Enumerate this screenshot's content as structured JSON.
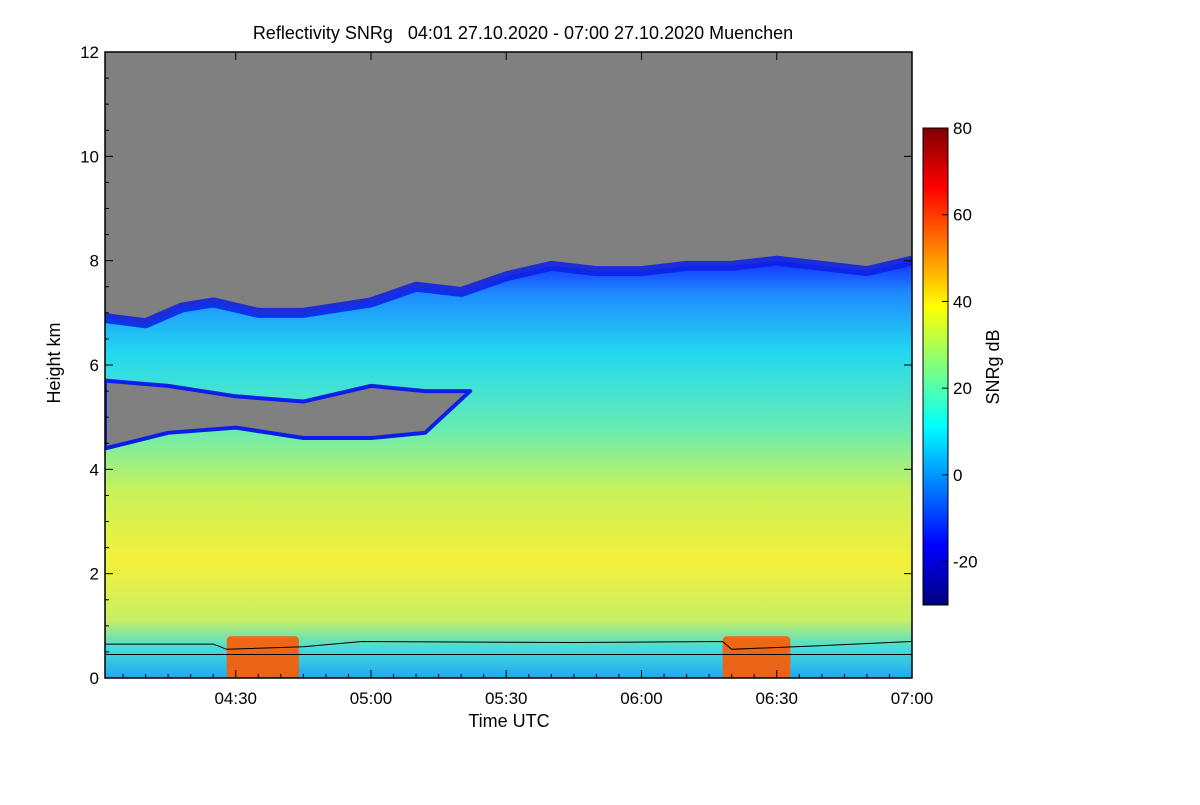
{
  "chart_data": {
    "type": "heatmap",
    "title": "Reflectivity SNRg   04:01 27.10.2020 - 07:00 27.10.2020 Muenchen",
    "xlabel": "Time UTC",
    "ylabel": "Height km",
    "colorbar_label": "SNRg dB",
    "xlim": [
      "04:01",
      "07:00"
    ],
    "ylim": [
      0,
      12
    ],
    "x_ticks": [
      {
        "t": "04:30",
        "minutes": 270
      },
      {
        "t": "05:00",
        "minutes": 300
      },
      {
        "t": "05:30",
        "minutes": 330
      },
      {
        "t": "06:00",
        "minutes": 360
      },
      {
        "t": "06:30",
        "minutes": 390
      },
      {
        "t": "07:00",
        "minutes": 420
      }
    ],
    "y_ticks": [
      0,
      2,
      4,
      6,
      8,
      10,
      12
    ],
    "colorbar_range": [
      -30,
      80
    ],
    "colorbar_ticks": [
      -20,
      0,
      20,
      40,
      60,
      80
    ],
    "colors": {
      "no_data": "#808080",
      "colormap": [
        "#00007f",
        "#0000ff",
        "#007fff",
        "#00ffff",
        "#7fff7f",
        "#ffff00",
        "#ff7f00",
        "#ff0000",
        "#7f0000"
      ]
    },
    "echo_top_km": [
      {
        "t": 241,
        "h": 6.9
      },
      {
        "t": 250,
        "h": 6.8
      },
      {
        "t": 258,
        "h": 7.1
      },
      {
        "t": 265,
        "h": 7.2
      },
      {
        "t": 275,
        "h": 7.0
      },
      {
        "t": 285,
        "h": 7.0
      },
      {
        "t": 300,
        "h": 7.2
      },
      {
        "t": 310,
        "h": 7.5
      },
      {
        "t": 320,
        "h": 7.4
      },
      {
        "t": 330,
        "h": 7.7
      },
      {
        "t": 340,
        "h": 7.9
      },
      {
        "t": 350,
        "h": 7.8
      },
      {
        "t": 360,
        "h": 7.8
      },
      {
        "t": 370,
        "h": 7.9
      },
      {
        "t": 380,
        "h": 7.9
      },
      {
        "t": 390,
        "h": 8.0
      },
      {
        "t": 400,
        "h": 7.9
      },
      {
        "t": 410,
        "h": 7.8
      },
      {
        "t": 420,
        "h": 8.0
      }
    ],
    "cloud_base_km": [
      {
        "t": 241,
        "h": 4.4
      },
      {
        "t": 255,
        "h": 4.7
      },
      {
        "t": 270,
        "h": 4.8
      },
      {
        "t": 285,
        "h": 4.6
      },
      {
        "t": 300,
        "h": 4.6
      },
      {
        "t": 312,
        "h": 4.7
      },
      {
        "t": 322,
        "h": 5.5
      }
    ],
    "melting_layer_km": [
      {
        "t": 241,
        "h": 0.65
      },
      {
        "t": 265,
        "h": 0.65
      },
      {
        "t": 268,
        "h": 0.55
      },
      {
        "t": 285,
        "h": 0.6
      },
      {
        "t": 298,
        "h": 0.7
      },
      {
        "t": 345,
        "h": 0.68
      },
      {
        "t": 378,
        "h": 0.7
      },
      {
        "t": 380,
        "h": 0.55
      },
      {
        "t": 400,
        "h": 0.62
      },
      {
        "t": 420,
        "h": 0.7
      }
    ],
    "lower_reference_km": 0.45
  }
}
